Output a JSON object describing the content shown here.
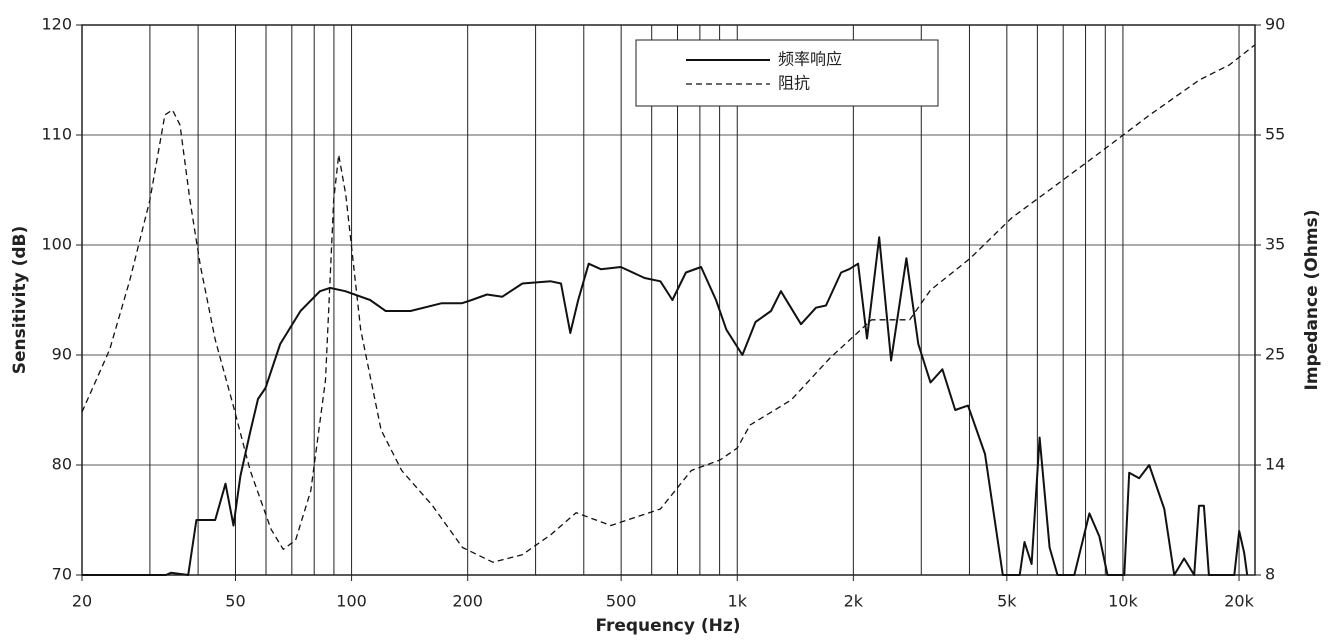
{
  "chart_data": {
    "type": "line",
    "xlabel": "Frequency (Hz)",
    "ylabel": "Sensitivity (dB)",
    "y2label": "Impedance (Ohms)",
    "xscale": "log",
    "xlim": [
      20,
      22000
    ],
    "xticks": [
      20,
      50,
      100,
      200,
      500,
      {
        "value": 1000,
        "label": "1k"
      },
      {
        "value": 2000,
        "label": "2k"
      },
      {
        "value": 5000,
        "label": "5k"
      },
      {
        "value": 10000,
        "label": "10k"
      },
      {
        "value": 20000,
        "label": "20k"
      }
    ],
    "xgrid": [
      30,
      40,
      50,
      60,
      70,
      80,
      90,
      100,
      200,
      300,
      400,
      500,
      600,
      700,
      800,
      900,
      1000,
      2000,
      3000,
      4000,
      5000,
      6000,
      7000,
      8000,
      9000,
      10000,
      20000
    ],
    "ylim": [
      70,
      120
    ],
    "yticks": [
      70,
      80,
      90,
      100,
      110,
      120
    ],
    "y2lim": [
      8,
      90
    ],
    "y2ticks": [
      8,
      14,
      25,
      35,
      55,
      90
    ],
    "grid": true,
    "legend": "top",
    "series": [
      {
        "name": "频率响应",
        "color": "#111111",
        "style": "solid",
        "x": [
          20,
          33,
          34,
          37.7,
          39.6,
          44.3,
          47.1,
          49.4,
          51.5,
          54.6,
          57.2,
          59.8,
          65.3,
          73.7,
          82.8,
          87.9,
          96.3,
          111.7,
          122.6,
          142.2,
          170.9,
          193,
          204.8,
          224.4,
          245.9,
          277.2,
          328.6,
          349.2,
          369,
          387,
          412,
          443,
          499,
          575,
          632,
          679,
          736,
          806,
          881,
          937,
          1031,
          1115,
          1223,
          1298,
          1463,
          1600,
          1699,
          1859,
          1951,
          2058,
          2170,
          2334,
          2506,
          2745,
          2948,
          3170,
          3403,
          3674,
          3965,
          4388,
          4880,
          5400,
          5555,
          5796,
          6080,
          6455,
          6765,
          7480,
          8186,
          8690,
          9120,
          10080,
          10380,
          11020,
          11700,
          12800,
          13580,
          14410,
          15300,
          15750,
          16220,
          16710,
          19440,
          20020,
          20630,
          21000
        ],
        "values": [
          70,
          70,
          70.2,
          70,
          75,
          75,
          78.3,
          74.5,
          79,
          83,
          86,
          87,
          91,
          94,
          95.8,
          96.1,
          95.8,
          95,
          94,
          94,
          94.7,
          94.7,
          95,
          95.5,
          95.3,
          96.5,
          96.7,
          96.5,
          92,
          95,
          98.3,
          97.8,
          98,
          97,
          96.7,
          95,
          97.5,
          98,
          95,
          92.3,
          90,
          93,
          94,
          95.8,
          92.8,
          94.3,
          94.5,
          97.5,
          97.8,
          98.3,
          91.5,
          100.7,
          89.5,
          98.8,
          91,
          87.5,
          88.7,
          85,
          85.4,
          81,
          70,
          70,
          73,
          71,
          82.5,
          72.5,
          70,
          70,
          75.6,
          73.5,
          70,
          70,
          79.3,
          78.8,
          80,
          76,
          70,
          71.5,
          70,
          76.3,
          76.3,
          70,
          70,
          74,
          72,
          70
        ]
      },
      {
        "name": "阻抗",
        "color": "#111111",
        "style": "dashed",
        "axis": "y2",
        "x": [
          20,
          23.6,
          26.6,
          30,
          32.8,
          34.3,
          35.9,
          38.1,
          40.5,
          44.3,
          49.3,
          54.6,
          61.8,
          66.5,
          71.6,
          78.4,
          85.6,
          89.9,
          92.6,
          96.6,
          105.6,
          119.3,
          134.9,
          161.8,
          193.9,
          232.4,
          277,
          328.6,
          382,
          470,
          632,
          760,
          902,
          1000,
          1080,
          1380,
          1740,
          2230,
          2800,
          3170,
          4020,
          5160,
          6450,
          8710,
          11740,
          15780,
          18880,
          21950
        ],
        "values": [
          19.3,
          25.5,
          31.8,
          43.2,
          61.4,
          63,
          58.2,
          43.2,
          33.2,
          26.4,
          20,
          13.7,
          10.5,
          9.4,
          9.9,
          12.6,
          22.5,
          43.2,
          51.4,
          44.1,
          27.3,
          17.5,
          13.7,
          11.8,
          9.5,
          8.7,
          9.1,
          10.2,
          11.4,
          10.7,
          11.6,
          13.7,
          14.5,
          15.7,
          18,
          20.5,
          24.7,
          28.2,
          28.2,
          30.9,
          33.8,
          40,
          45,
          51.8,
          61.4,
          72.5,
          77.3,
          83.6
        ]
      }
    ]
  }
}
